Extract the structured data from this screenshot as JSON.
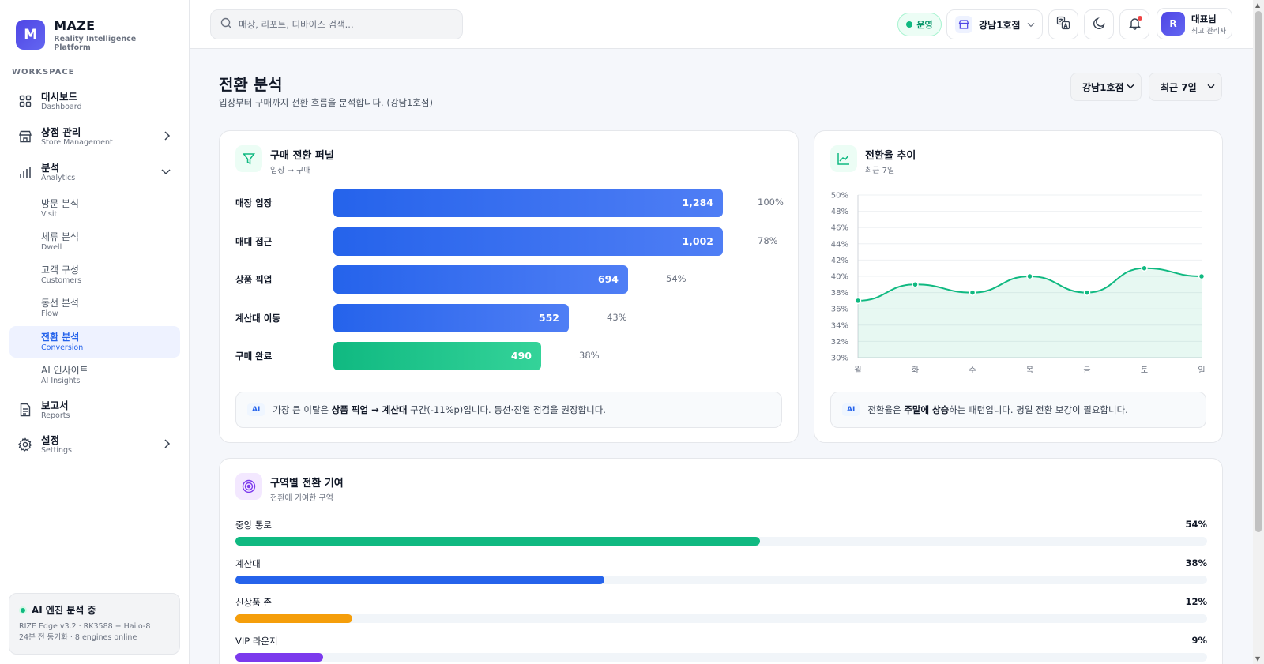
{
  "brand": {
    "logo_letter": "M",
    "name": "MAZE",
    "subtitle": "Reality Intelligence Platform"
  },
  "sidebar": {
    "section_label": "WORKSPACE",
    "items": [
      {
        "label": "대시보드",
        "sub": "Dashboard",
        "icon": "grid-icon"
      },
      {
        "label": "상점 관리",
        "sub": "Store Management",
        "icon": "store-icon",
        "chevron": "right"
      },
      {
        "label": "분석",
        "sub": "Analytics",
        "icon": "bar-chart-icon",
        "chevron": "down"
      },
      {
        "label": "보고서",
        "sub": "Reports",
        "icon": "document-icon"
      },
      {
        "label": "설정",
        "sub": "Settings",
        "icon": "gear-icon",
        "chevron": "right"
      }
    ],
    "analytics_sub": [
      {
        "label": "방문 분석",
        "sub": "Visit"
      },
      {
        "label": "체류 분석",
        "sub": "Dwell"
      },
      {
        "label": "고객 구성",
        "sub": "Customers"
      },
      {
        "label": "동선 분석",
        "sub": "Flow"
      },
      {
        "label": "전환 분석",
        "sub": "Conversion",
        "active": true
      },
      {
        "label": "AI 인사이트",
        "sub": "AI Insights"
      }
    ],
    "ai_engine": {
      "title": "AI 엔진 분석 중",
      "line1": "RIZE Edge v3.2 · RK3588 + Hailo-8",
      "line2": "24분 전 동기화 · 8 engines online"
    }
  },
  "topbar": {
    "search_placeholder": "매장, 리포트, 디바이스 검색...",
    "status": "운영",
    "store": "강남1호점",
    "user_initial": "R",
    "user_name": "대표님",
    "user_role": "최고 관리자"
  },
  "page": {
    "title": "전환 분석",
    "subtitle": "입장부터 구매까지 전환 흐름을 분석합니다. (강남1호점)",
    "filter_store": "강남1호점",
    "filter_period": "최근 7일"
  },
  "funnel": {
    "title": "구매 전환 퍼널",
    "subtitle": "입장 → 구매",
    "steps": [
      {
        "label": "매장 입장",
        "value": "1,284",
        "pct": "100%",
        "ratio": 1.0
      },
      {
        "label": "매대 접근",
        "value": "1,002",
        "pct": "78%",
        "ratio": 1.0
      },
      {
        "label": "상품 픽업",
        "value": "694",
        "pct": "54%",
        "ratio": 0.757
      },
      {
        "label": "계산대 이동",
        "value": "552",
        "pct": "43%",
        "ratio": 0.604
      },
      {
        "label": "구매 완료",
        "value": "490",
        "pct": "38%",
        "ratio": 0.533
      }
    ],
    "insight_tag": "AI",
    "insight_pre": "가장 큰 이탈은 ",
    "insight_bold": "상품 픽업 → 계산대",
    "insight_post": " 구간(-11%p)입니다. 동선·진열 점검을 권장합니다."
  },
  "trend": {
    "title": "전환율 추이",
    "subtitle": "최근 7일",
    "insight_tag": "AI",
    "insight_pre": "전환율은 ",
    "insight_bold": "주말에 상승",
    "insight_post": "하는 패턴입니다. 평일 전환 보강이 필요합니다."
  },
  "chart_data": {
    "type": "area",
    "title": "전환율 추이",
    "categories": [
      "월",
      "화",
      "수",
      "목",
      "금",
      "토",
      "일"
    ],
    "values": [
      37,
      39,
      38,
      40,
      38,
      41,
      40
    ],
    "ylim": [
      30,
      50
    ],
    "yticks": [
      "30%",
      "32%",
      "34%",
      "36%",
      "38%",
      "40%",
      "42%",
      "44%",
      "46%",
      "48%",
      "50%"
    ],
    "grid": true,
    "color": "#10b981"
  },
  "zones": {
    "title": "구역별 전환 기여",
    "subtitle": "전환에 기여한 구역",
    "items": [
      {
        "label": "중앙 통로",
        "pct": "54%",
        "ratio": 0.54,
        "color": "#10b981"
      },
      {
        "label": "계산대",
        "pct": "38%",
        "ratio": 0.38,
        "color": "#2563eb"
      },
      {
        "label": "신상품 존",
        "pct": "12%",
        "ratio": 0.12,
        "color": "#f59e0b"
      },
      {
        "label": "VIP 라운지",
        "pct": "9%",
        "ratio": 0.09,
        "color": "#7c3aed"
      }
    ]
  }
}
